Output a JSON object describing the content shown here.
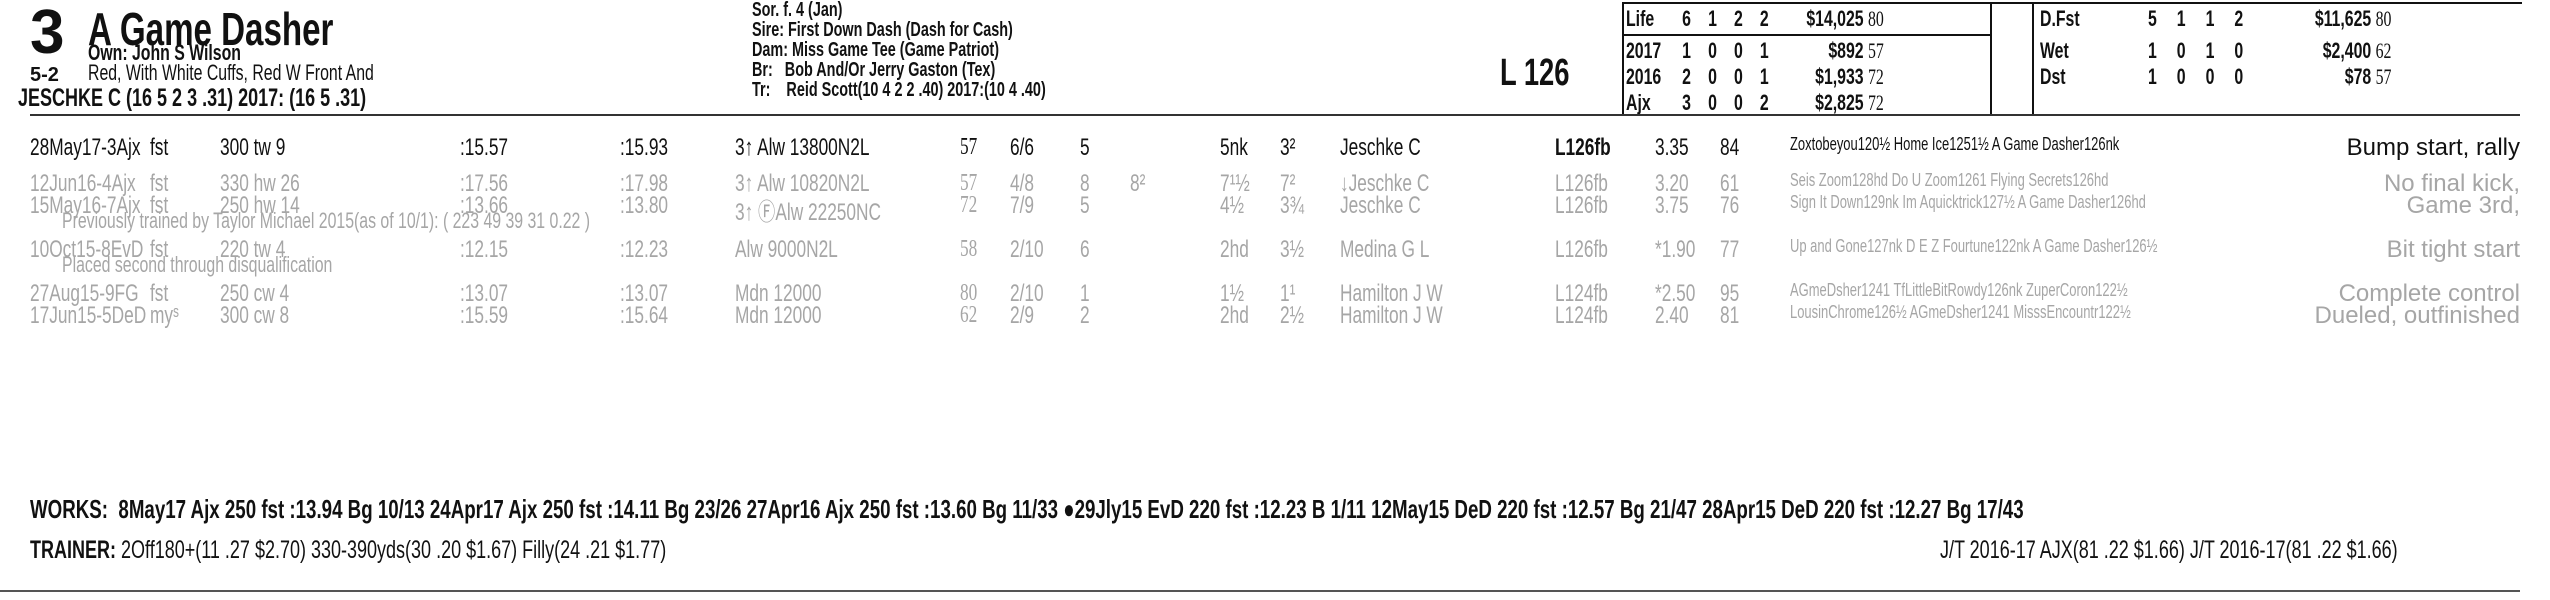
{
  "program_number": "3",
  "horse_name": "A Game Dasher",
  "odds": "5-2",
  "owner": "Own: John S Wilson",
  "silks": "Red, With White Cuffs, Red W Front And",
  "jockey": "JESCHKE C (16 5 2 3 .31) 2017: (16 5 .31)",
  "pedigree": {
    "sex_age": "Sor. f. 4 (Jan)",
    "sire": "Sire: First Down Dash (Dash for Cash)",
    "dam": "Dam: Miss Game Tee (Game Patriot)",
    "breeder_label": "Br:",
    "breeder": "Bob And/Or Jerry Gaston (Tex)",
    "trainer_label": "Tr:",
    "trainer": "Reid Scott(10 4 2 2 .40) 2017:(10 4 .40)"
  },
  "weight": "L 126",
  "stats_left": [
    {
      "label": "Life",
      "st": "6",
      "w": "1",
      "p": "2",
      "s": "2",
      "earn": "$14,025",
      "sp": "80"
    },
    {
      "label": "2017",
      "st": "1",
      "w": "0",
      "p": "0",
      "s": "1",
      "earn": "$892",
      "sp": "57"
    },
    {
      "label": "2016",
      "st": "2",
      "w": "0",
      "p": "0",
      "s": "1",
      "earn": "$1,933",
      "sp": "72"
    },
    {
      "label": "Ajx",
      "st": "3",
      "w": "0",
      "p": "0",
      "s": "2",
      "earn": "$2,825",
      "sp": "72"
    }
  ],
  "stats_right": [
    {
      "label": "D.Fst",
      "st": "5",
      "w": "1",
      "p": "1",
      "s": "2",
      "earn": "$11,625",
      "sp": "80"
    },
    {
      "label": "Wet",
      "st": "1",
      "w": "0",
      "p": "1",
      "s": "0",
      "earn": "$2,400",
      "sp": "62"
    },
    {
      "label": "Dst",
      "st": "1",
      "w": "0",
      "p": "0",
      "s": "0",
      "earn": "$78",
      "sp": "57"
    }
  ],
  "race_lines": [
    {
      "date": "28May17-3Ajx",
      "cond": "fst",
      "dist": "300 tw 9",
      "t1": ":15.57",
      "t2": ":15.93",
      "race": "3↑ Alw 13800N2L",
      "speed": "57",
      "pp": "6/6",
      "start": "5",
      "c1": "",
      "c2": "5nk",
      "fin": "3²",
      "jockey": "Jeschke C",
      "wt": "L126fb",
      "odds": "3.35",
      "fig": "84",
      "company": "Zoxtobeyou120½ Home Ice1251½ A Game Dasher126nk",
      "comment": "Bump start, rally"
    },
    {
      "date": "12Jun16-4Ajx",
      "cond": "fst",
      "dist": "330 hw 26",
      "t1": ":17.56",
      "t2": ":17.98",
      "race": "3↑ Alw 10820N2L",
      "speed": "57",
      "pp": "4/8",
      "start": "8",
      "c1": "8²",
      "c2": "7¹½",
      "fin": "7²",
      "jockey": "↓Jeschke C",
      "wt": "L126fb",
      "odds": "3.20",
      "fig": "61",
      "company": "Seis Zoom128hd Do U Zoom1261 Flying Secrets126hd",
      "comment": "No final kick,"
    },
    {
      "date": "15May16-7Ajx",
      "cond": "fst",
      "dist": "250 hw 14",
      "t1": ":13.66",
      "t2": ":13.80",
      "race": "3↑ ⒻAlw 22250NC",
      "speed": "72",
      "pp": "7/9",
      "start": "5",
      "c1": "",
      "c2": "4½",
      "fin": "3¾",
      "jockey": "Jeschke C",
      "wt": "L126fb",
      "odds": "3.75",
      "fig": "76",
      "company": "Sign It Down129nk Im Aquicktrick127½ A Game Dasher126hd",
      "comment": "Game 3rd,"
    },
    {
      "note": "Previously trained by Taylor Michael 2015(as of 10/1): ( 223 49 39 31 0.22 )"
    },
    {
      "date": "10Oct15-8EvD",
      "cond": "fst",
      "dist": "220 tw 4",
      "t1": ":12.15",
      "t2": ":12.23",
      "race": "Alw 9000N2L",
      "speed": "58",
      "pp": "2/10",
      "start": "6",
      "c1": "",
      "c2": "2hd",
      "fin": "3½",
      "jockey": "Medina G L",
      "wt": "L126fb",
      "odds": "*1.90",
      "fig": "77",
      "company": "Up and Gone127nk D E Z Fourtune122nk A Game Dasher126½",
      "comment": "Bit tight start"
    },
    {
      "note": "Placed second through disqualification"
    },
    {
      "date": "27Aug15-9FG",
      "cond": "fst",
      "dist": "250 cw 4",
      "t1": ":13.07",
      "t2": ":13.07",
      "race": "Mdn 12000",
      "speed": "80",
      "pp": "2/10",
      "start": "1",
      "c1": "",
      "c2": "1½",
      "fin": "1¹",
      "jockey": "Hamilton J W",
      "wt": "L124fb",
      "odds": "*2.50",
      "fig": "95",
      "company": "AGmeDsher1241 TfLittleBitRowdy126nk ZuperCoron122½",
      "comment": "Complete control"
    },
    {
      "date": "17Jun15-5DeD",
      "cond": "myˢ",
      "dist": "300 cw 8",
      "t1": ":15.59",
      "t2": ":15.64",
      "race": "Mdn 12000",
      "speed": "62",
      "pp": "2/9",
      "start": "2",
      "c1": "",
      "c2": "2hd",
      "fin": "2½",
      "jockey": "Hamilton J W",
      "wt": "L124fb",
      "odds": "2.40",
      "fig": "81",
      "company": "LousinChrome126½ AGmeDsher1241 MisssEncountr122½",
      "comment": "Dueled, outfinished"
    }
  ],
  "works_label": "WORKS:",
  "works": "8May17 Ajx 250 fst :13.94 Bg 10/13   24Apr17 Ajx 250 fst :14.11 Bg 23/26   27Apr16 Ajx 250 fst :13.60 Bg 11/33   ●29Jly15 EvD 220 fst :12.23 B 1/11   12May15 DeD 220 fst :12.57 Bg 21/47   28Apr15 DeD 220 fst :12.27 Bg 17/43",
  "trainer_label": "TRAINER:",
  "trainer_stats": "2Off180+(11 .27 $2.70) 330-390yds(30 .20 $1.67) Filly(24 .21 $1.77)",
  "jt_stats": "J/T 2016-17 AJX(81 .22 $1.66)  J/T 2016-17(81 .22 $1.66)"
}
